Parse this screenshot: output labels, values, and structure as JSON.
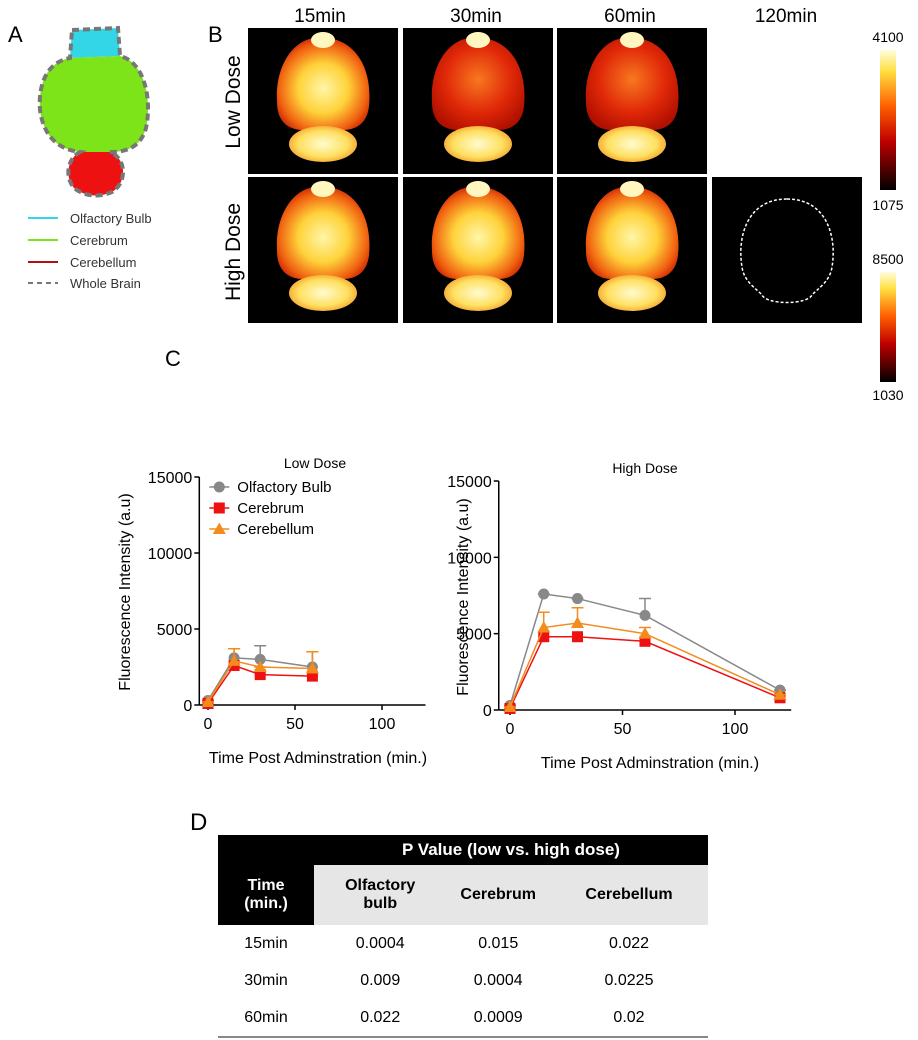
{
  "panel_labels": [
    "A",
    "B",
    "C",
    "D"
  ],
  "region_legend": [
    "Olfactory Bulb",
    "Cerebrum",
    "Cerebellum",
    "Whole Brain"
  ],
  "imaging": {
    "time_points": [
      "15min",
      "30min",
      "60min",
      "120min"
    ],
    "doses": [
      "Low Dose",
      "High Dose"
    ],
    "colorbars": [
      {
        "max": 4100,
        "min": 1075
      },
      {
        "max": 8500,
        "min": 1030
      }
    ]
  },
  "chart_data": [
    {
      "type": "line",
      "title": "Low Dose",
      "x_label": "Time Post Adminstration (min.)",
      "y_label": "Fluorescence Intensity (a.u)",
      "x": [
        0,
        15,
        30,
        60
      ],
      "xlim": [
        -5,
        125
      ],
      "xticks": [
        0,
        50,
        100
      ],
      "ylim": [
        0,
        15000
      ],
      "yticks": [
        0,
        5000,
        10000,
        15000
      ],
      "legend": "upper left",
      "series": [
        {
          "name": "Olfactory Bulb",
          "color": "#888888",
          "marker": "circle",
          "values": [
            300,
            3100,
            3000,
            2500
          ],
          "errors": [
            0,
            600,
            900,
            1000
          ]
        },
        {
          "name": "Cerebrum",
          "color": "#ee1111",
          "marker": "square",
          "values": [
            100,
            2600,
            2000,
            1900
          ]
        },
        {
          "name": "Cerebellum",
          "color": "#f28c1e",
          "marker": "triangle",
          "values": [
            200,
            2900,
            2500,
            2400
          ],
          "errors": [
            0,
            800,
            0,
            1100
          ]
        }
      ]
    },
    {
      "type": "line",
      "title": "High Dose",
      "x_label": "Time Post Adminstration (min.)",
      "y_label": "Fluorescence Intensity (a.u)",
      "x": [
        0,
        15,
        30,
        60,
        120
      ],
      "xlim": [
        -5,
        125
      ],
      "xticks": [
        0,
        50,
        100
      ],
      "ylim": [
        0,
        15000
      ],
      "yticks": [
        0,
        5000,
        10000,
        15000
      ],
      "series": [
        {
          "color": "#888888",
          "marker": "circle",
          "values": [
            300,
            7600,
            7300,
            6200,
            1300
          ],
          "errors": [
            0,
            0,
            0,
            1100,
            0
          ]
        },
        {
          "color": "#ee1111",
          "marker": "square",
          "values": [
            100,
            4800,
            4800,
            4500,
            800
          ]
        },
        {
          "color": "#f28c1e",
          "marker": "triangle",
          "values": [
            200,
            5400,
            5700,
            5000,
            1000
          ],
          "errors": [
            0,
            1000,
            1000,
            400,
            0
          ]
        }
      ]
    }
  ],
  "table": {
    "title": "P Value (low vs. high dose)",
    "headers": [
      "Time (min.)",
      "Olfactory bulb",
      "Cerebrum",
      "Cerebellum"
    ],
    "rows": [
      [
        "15min",
        "0.0004",
        "0.015",
        "0.022"
      ],
      [
        "30min",
        "0.009",
        "0.0004",
        "0.0225"
      ],
      [
        "60min",
        "0.022",
        "0.0009",
        "0.02"
      ]
    ]
  }
}
